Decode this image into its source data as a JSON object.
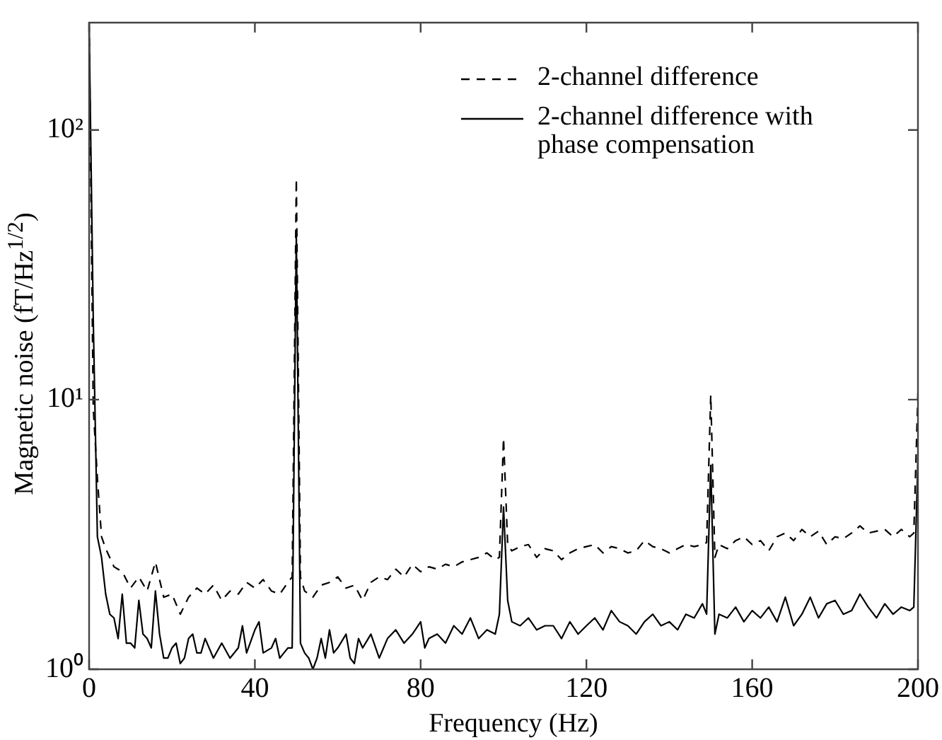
{
  "chart_data": {
    "type": "line",
    "xlabel": "Frequency (Hz)",
    "ylabel": "Magnetic noise (fT/Hz$^{1/2}$)",
    "log": "y",
    "grid": false,
    "legend": "top right",
    "marker": "none",
    "xlim": [
      0,
      200
    ],
    "xticks": [
      0,
      40,
      80,
      120,
      160,
      200
    ],
    "ylim": [
      1,
      250
    ],
    "yticks": [
      {
        "value": 1,
        "label": "10⁰"
      },
      {
        "value": 10,
        "label": "10¹"
      },
      {
        "value": 100,
        "label": "10²"
      }
    ],
    "series": [
      {
        "name": "2-channel difference",
        "color": "#000000",
        "line_style": "dashed",
        "x": [
          0,
          1,
          2,
          3,
          4,
          6,
          8,
          10,
          12,
          14,
          16,
          18,
          20,
          22,
          24,
          26,
          28,
          30,
          32,
          34,
          36,
          38,
          40,
          42,
          44,
          46,
          48,
          49,
          50,
          51,
          52,
          54,
          56,
          58,
          60,
          62,
          64,
          66,
          68,
          70,
          72,
          74,
          76,
          78,
          80,
          82,
          84,
          86,
          88,
          90,
          92,
          94,
          96,
          98,
          99,
          100,
          101,
          102,
          104,
          106,
          108,
          110,
          112,
          114,
          116,
          118,
          120,
          122,
          124,
          126,
          128,
          130,
          132,
          134,
          136,
          138,
          140,
          142,
          144,
          146,
          148,
          149,
          150,
          151,
          152,
          154,
          156,
          158,
          160,
          162,
          164,
          166,
          168,
          170,
          172,
          174,
          176,
          178,
          180,
          182,
          184,
          186,
          188,
          190,
          192,
          194,
          196,
          198,
          199,
          200
        ],
        "values": [
          250,
          9.3,
          5.1,
          3.1,
          2.8,
          2.4,
          2.3,
          2.0,
          2.2,
          1.95,
          2.5,
          1.85,
          1.9,
          1.6,
          1.85,
          2.0,
          1.9,
          2.05,
          1.8,
          1.95,
          1.9,
          2.1,
          2.0,
          2.15,
          1.95,
          1.9,
          2.1,
          2.2,
          66,
          2.2,
          1.95,
          1.85,
          2.05,
          2.1,
          2.2,
          2.0,
          2.05,
          1.8,
          2.1,
          2.2,
          2.15,
          2.35,
          2.2,
          2.45,
          2.3,
          2.4,
          2.35,
          2.45,
          2.4,
          2.5,
          2.55,
          2.6,
          2.7,
          2.55,
          2.6,
          7.2,
          2.9,
          2.75,
          2.85,
          2.9,
          2.6,
          2.8,
          2.75,
          2.55,
          2.7,
          2.8,
          2.85,
          2.9,
          2.7,
          2.85,
          2.8,
          2.7,
          2.75,
          3.0,
          2.85,
          2.8,
          2.7,
          2.8,
          2.9,
          2.85,
          2.9,
          2.95,
          10.4,
          2.6,
          2.9,
          2.8,
          3.0,
          3.1,
          2.9,
          3.0,
          2.75,
          3.1,
          3.2,
          3.0,
          3.3,
          3.1,
          3.25,
          2.9,
          3.1,
          3.05,
          3.2,
          3.4,
          3.2,
          3.25,
          3.3,
          3.1,
          3.3,
          3.1,
          3.2,
          10.6
        ]
      },
      {
        "name": "2-channel difference with phase compensation",
        "color": "#000000",
        "line_style": "solid",
        "x": [
          0,
          1,
          2,
          3,
          4,
          5,
          6,
          7,
          8,
          9,
          10,
          11,
          12,
          13,
          14,
          15,
          16,
          17,
          18,
          19,
          20,
          21,
          22,
          23,
          24,
          25,
          26,
          27,
          28,
          30,
          32,
          34,
          36,
          37,
          38,
          40,
          41,
          42,
          44,
          45,
          46,
          47,
          48,
          49,
          50,
          51,
          52,
          53,
          54,
          55,
          56,
          57,
          58,
          59,
          60,
          62,
          63,
          64,
          65,
          66,
          68,
          70,
          72,
          74,
          76,
          78,
          80,
          81,
          82,
          84,
          86,
          88,
          90,
          92,
          94,
          96,
          98,
          99,
          100,
          101,
          102,
          104,
          106,
          108,
          110,
          112,
          114,
          116,
          118,
          120,
          122,
          124,
          126,
          128,
          130,
          132,
          134,
          136,
          138,
          140,
          142,
          144,
          146,
          148,
          149,
          150,
          151,
          152,
          154,
          156,
          158,
          160,
          162,
          164,
          166,
          168,
          170,
          172,
          174,
          176,
          178,
          180,
          182,
          184,
          186,
          188,
          190,
          192,
          194,
          196,
          198,
          199,
          200
        ],
        "values": [
          250,
          20,
          3.1,
          2.6,
          1.9,
          1.6,
          1.55,
          1.3,
          1.9,
          1.25,
          1.25,
          1.2,
          1.8,
          1.35,
          1.3,
          1.2,
          1.95,
          1.35,
          1.1,
          1.1,
          1.2,
          1.25,
          1.05,
          1.1,
          1.3,
          1.35,
          1.15,
          1.15,
          1.3,
          1.1,
          1.25,
          1.1,
          1.2,
          1.45,
          1.15,
          1.4,
          1.5,
          1.15,
          1.2,
          1.3,
          1.1,
          1.15,
          1.2,
          1.2,
          41,
          1.25,
          1.15,
          1.1,
          1.0,
          1.1,
          1.3,
          1.1,
          1.4,
          1.15,
          1.2,
          1.35,
          1.1,
          1.05,
          1.3,
          1.2,
          1.35,
          1.1,
          1.3,
          1.4,
          1.25,
          1.35,
          1.5,
          1.2,
          1.3,
          1.35,
          1.25,
          1.45,
          1.35,
          1.55,
          1.3,
          1.4,
          1.35,
          1.6,
          4.0,
          1.8,
          1.5,
          1.45,
          1.55,
          1.4,
          1.45,
          1.45,
          1.3,
          1.5,
          1.35,
          1.45,
          1.55,
          1.4,
          1.65,
          1.5,
          1.45,
          1.35,
          1.5,
          1.6,
          1.45,
          1.5,
          1.4,
          1.6,
          1.55,
          1.75,
          1.6,
          5.7,
          1.35,
          1.6,
          1.55,
          1.7,
          1.5,
          1.65,
          1.55,
          1.7,
          1.5,
          1.85,
          1.45,
          1.6,
          1.85,
          1.55,
          1.75,
          1.8,
          1.6,
          1.65,
          1.9,
          1.7,
          1.55,
          1.75,
          1.6,
          1.7,
          1.65,
          1.7,
          6.1
        ]
      }
    ]
  }
}
